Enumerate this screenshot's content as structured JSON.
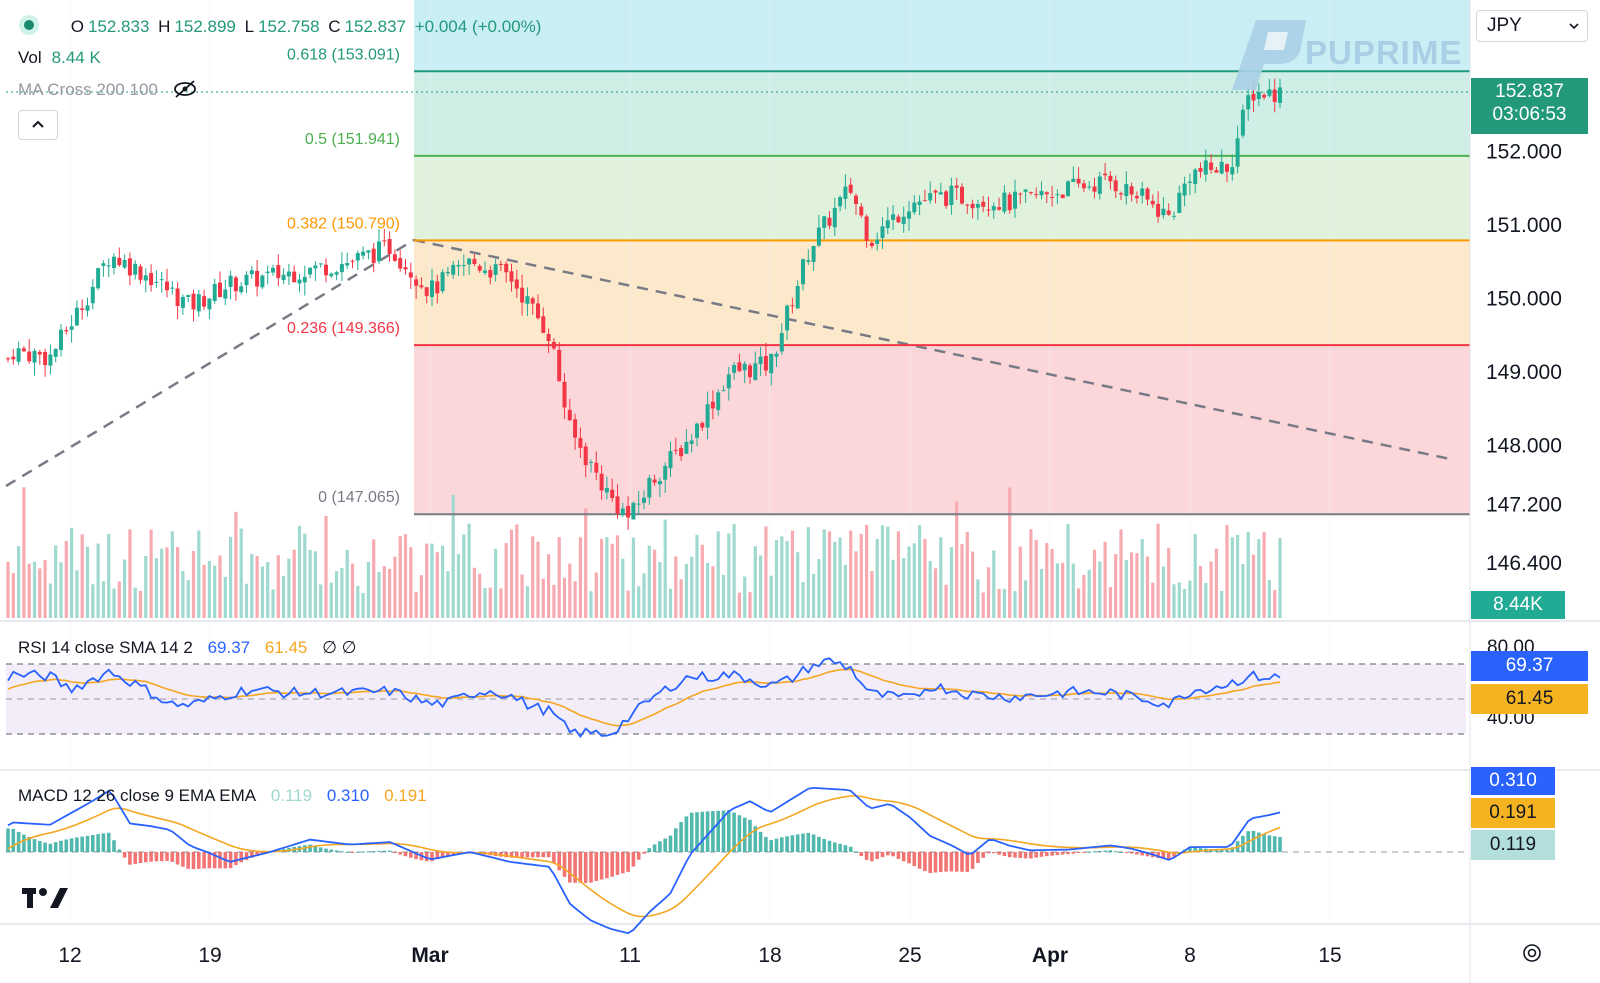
{
  "legend": {
    "open_label": "O",
    "open": "152.833",
    "high_label": "H",
    "high": "152.899",
    "low_label": "L",
    "low": "152.758",
    "close_label": "C",
    "close": "152.837",
    "change": "+0.004 (+0.00%)",
    "vol_label": "Vol",
    "vol": "8.44 K",
    "ma_label": "MA Cross 200 100"
  },
  "currency": {
    "label": "JPY",
    "icon": "chevron-down-icon"
  },
  "watermark": {
    "text": "PUPRIME"
  },
  "fib": [
    {
      "ratio": "0.618",
      "value": 153.091,
      "label": "0.618 (153.091)",
      "color": "#22997a",
      "fill": "#c9eef4"
    },
    {
      "ratio": "0.5",
      "value": 151.941,
      "label": "0.5 (151.941)",
      "color": "#4caf50",
      "fill": "#cfeee6"
    },
    {
      "ratio": "0.382",
      "value": 150.79,
      "label": "0.382 (150.790)",
      "color": "#ff9800",
      "fill": "#e0f1dc"
    },
    {
      "ratio": "0.236",
      "value": 149.366,
      "label": "0.236 (149.366)",
      "color": "#f23645",
      "fill": "#fce9cc"
    },
    {
      "ratio": "0",
      "value": 147.065,
      "label": "0 (147.065)",
      "color": "#787b86",
      "fill": "#fcd7da"
    }
  ],
  "price_tag": {
    "price": "152.837",
    "countdown": "03:06:53",
    "color": "#22997a"
  },
  "volume_tag": {
    "text": "8.44K",
    "color": "#22ab94"
  },
  "rsi": {
    "legend": "RSI 14 close SMA 14 2",
    "rsi_value": "69.37",
    "sma_value": "61.45",
    "eye_icons": "∅ ∅",
    "axis_ticks": [
      "80.00",
      "40.00"
    ],
    "rsi_color": "#2962ff",
    "sma_color": "#f5a623"
  },
  "macd": {
    "legend": "MACD 12 26 close 9 EMA EMA",
    "hist_value": "0.119",
    "macd_value": "0.310",
    "signal_value": "0.191",
    "macd_color": "#2962ff",
    "signal_color": "#f5a623",
    "hist_color": "#b2dfdb"
  },
  "chart_data": {
    "type": "candlestick",
    "symbol_quote_currency": "JPY",
    "y_axis_ticks": [
      152.0,
      151.0,
      150.0,
      149.0,
      148.0,
      147.2,
      146.4
    ],
    "ylim": [
      145.4,
      153.9
    ],
    "x_tick_labels": [
      {
        "label": "12",
        "date": "2024-02-12"
      },
      {
        "label": "19",
        "date": "2024-02-19"
      },
      {
        "label": "Mar",
        "date": "2024-03-01"
      },
      {
        "label": "11",
        "date": "2024-03-11"
      },
      {
        "label": "18",
        "date": "2024-03-18"
      },
      {
        "label": "25",
        "date": "2024-03-25"
      },
      {
        "label": "Apr",
        "date": "2024-04-01"
      },
      {
        "label": "8",
        "date": "2024-04-08"
      },
      {
        "label": "15",
        "date": "2024-04-15"
      }
    ],
    "close_path_anchors": [
      {
        "date": "2024-02-08",
        "close": 148.1
      },
      {
        "date": "2024-02-09",
        "close": 149.3
      },
      {
        "date": "2024-02-11",
        "close": 149.2
      },
      {
        "date": "2024-02-13",
        "close": 150.1
      },
      {
        "date": "2024-02-14",
        "close": 150.6
      },
      {
        "date": "2024-02-16",
        "close": 150.3
      },
      {
        "date": "2024-02-18",
        "close": 149.9
      },
      {
        "date": "2024-02-20",
        "close": 150.2
      },
      {
        "date": "2024-02-22",
        "close": 150.3
      },
      {
        "date": "2024-02-24",
        "close": 150.4
      },
      {
        "date": "2024-02-26",
        "close": 150.5
      },
      {
        "date": "2024-02-28",
        "close": 150.7
      },
      {
        "date": "2024-03-01",
        "close": 150.1
      },
      {
        "date": "2024-03-03",
        "close": 150.5
      },
      {
        "date": "2024-03-05",
        "close": 150.3
      },
      {
        "date": "2024-03-07",
        "close": 149.5
      },
      {
        "date": "2024-03-08",
        "close": 148.2
      },
      {
        "date": "2024-03-10",
        "close": 147.3
      },
      {
        "date": "2024-03-11",
        "close": 147.0
      },
      {
        "date": "2024-03-12",
        "close": 147.5
      },
      {
        "date": "2024-03-14",
        "close": 148.1
      },
      {
        "date": "2024-03-16",
        "close": 149.0
      },
      {
        "date": "2024-03-18",
        "close": 149.1
      },
      {
        "date": "2024-03-20",
        "close": 150.7
      },
      {
        "date": "2024-03-22",
        "close": 151.5
      },
      {
        "date": "2024-03-23",
        "close": 150.8
      },
      {
        "date": "2024-03-25",
        "close": 151.3
      },
      {
        "date": "2024-03-27",
        "close": 151.4
      },
      {
        "date": "2024-03-30",
        "close": 151.3
      },
      {
        "date": "2024-04-02",
        "close": 151.5
      },
      {
        "date": "2024-04-04",
        "close": 151.6
      },
      {
        "date": "2024-04-06",
        "close": 151.3
      },
      {
        "date": "2024-04-07",
        "close": 151.1
      },
      {
        "date": "2024-04-08",
        "close": 151.7
      },
      {
        "date": "2024-04-10",
        "close": 151.8
      },
      {
        "date": "2024-04-11",
        "close": 152.8
      }
    ]
  }
}
